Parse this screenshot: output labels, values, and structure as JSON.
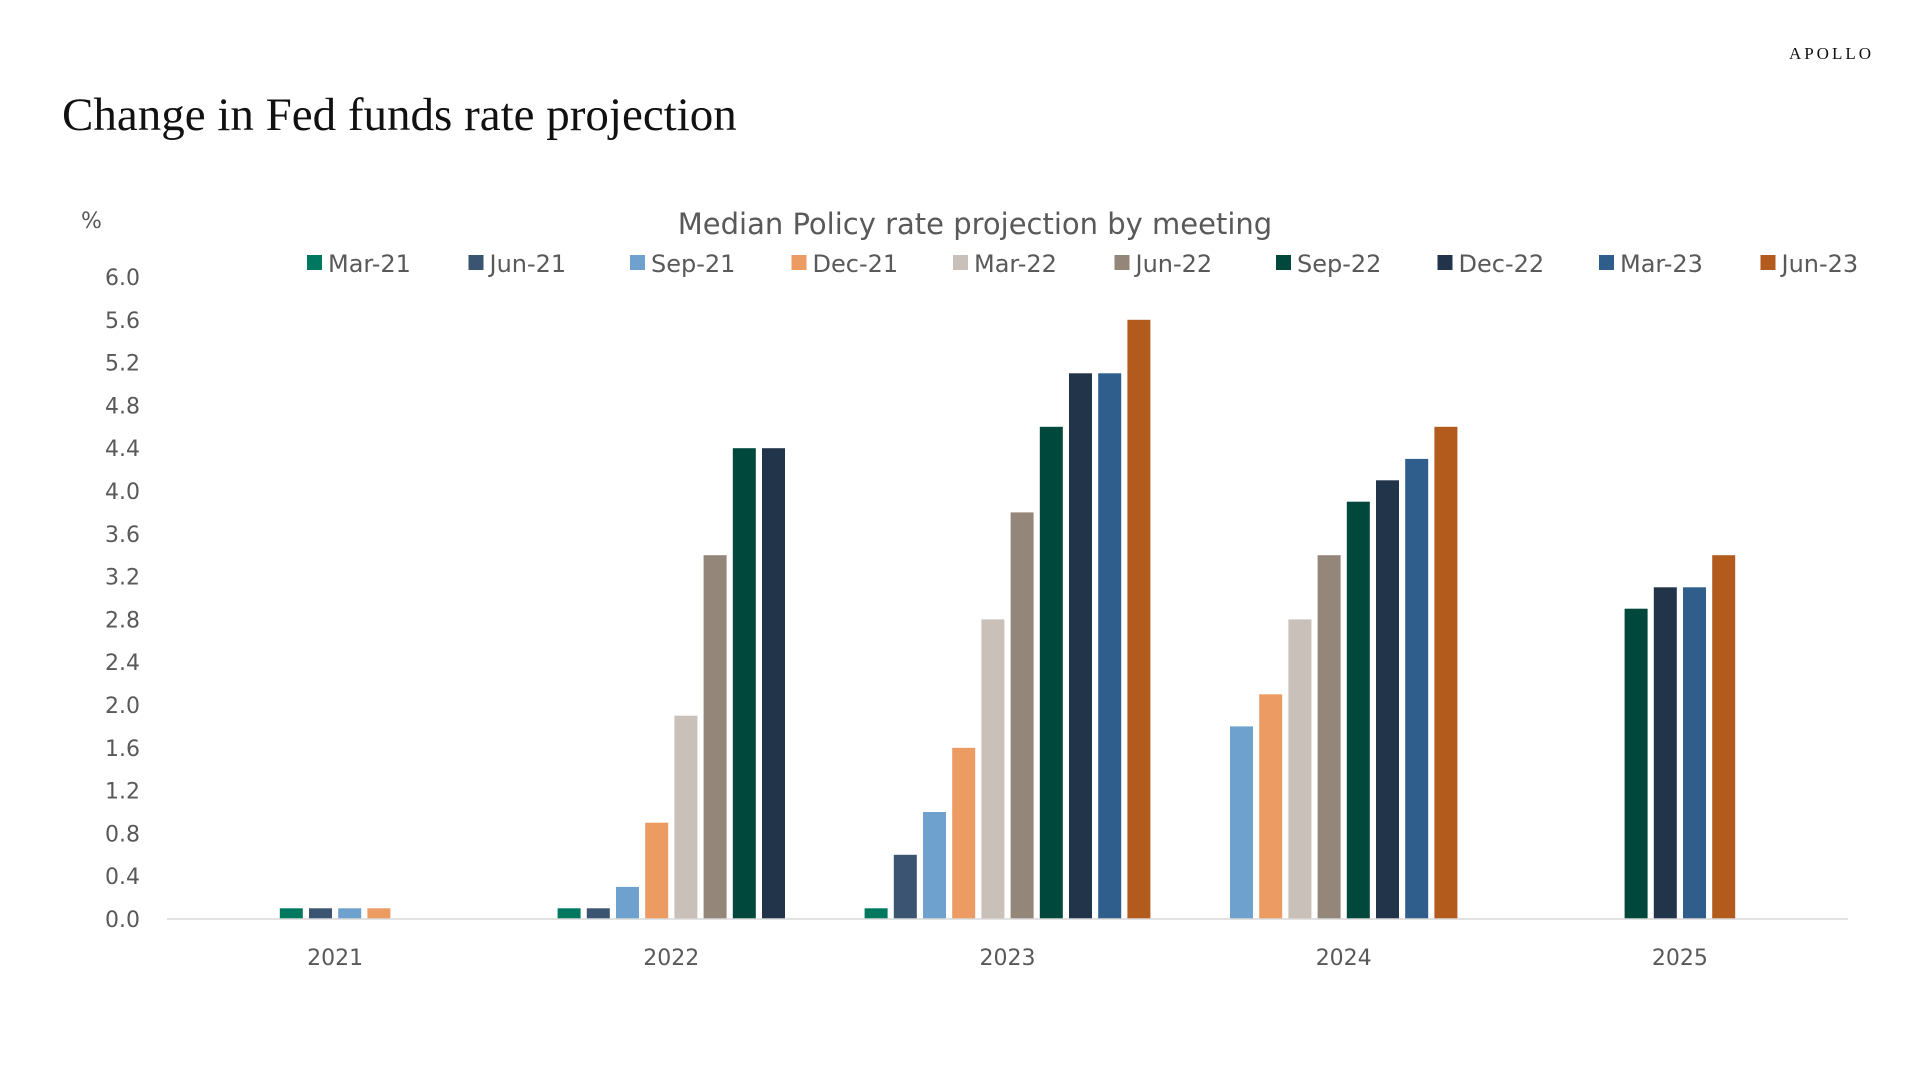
{
  "brand": "APOLLO",
  "page_title": "Change in Fed funds rate projection",
  "chart_data": {
    "type": "bar",
    "title": "Median Policy rate projection by meeting",
    "ylabel": "%",
    "xlabel": "",
    "ylim": [
      0,
      6
    ],
    "yticks": [
      "0.0",
      "0.4",
      "0.8",
      "1.2",
      "1.6",
      "2.0",
      "2.4",
      "2.8",
      "3.2",
      "3.6",
      "4.0",
      "4.4",
      "4.8",
      "5.2",
      "5.6",
      "6.0"
    ],
    "grid": false,
    "legend_position": "top",
    "categories": [
      "2021",
      "2022",
      "2023",
      "2024",
      "2025"
    ],
    "series": [
      {
        "name": "Mar-21",
        "color": "#00775F",
        "values": [
          0.1,
          0.1,
          0.1,
          null,
          null
        ]
      },
      {
        "name": "Jun-21",
        "color": "#3B5472",
        "values": [
          0.1,
          0.1,
          0.6,
          null,
          null
        ]
      },
      {
        "name": "Sep-21",
        "color": "#6FA1CF",
        "values": [
          0.1,
          0.3,
          1.0,
          1.8,
          null
        ]
      },
      {
        "name": "Dec-21",
        "color": "#EC9B63",
        "values": [
          0.1,
          0.9,
          1.6,
          2.1,
          null
        ]
      },
      {
        "name": "Mar-22",
        "color": "#C9C1B9",
        "values": [
          null,
          1.9,
          2.8,
          2.8,
          null
        ]
      },
      {
        "name": "Jun-22",
        "color": "#948679",
        "values": [
          null,
          3.4,
          3.8,
          3.4,
          null
        ]
      },
      {
        "name": "Sep-22",
        "color": "#00483C",
        "values": [
          null,
          4.4,
          4.6,
          3.9,
          2.9
        ]
      },
      {
        "name": "Dec-22",
        "color": "#22344A",
        "values": [
          null,
          4.4,
          5.1,
          4.1,
          3.1
        ]
      },
      {
        "name": "Mar-23",
        "color": "#2F5D8C",
        "values": [
          null,
          null,
          5.1,
          4.3,
          3.1
        ]
      },
      {
        "name": "Jun-23",
        "color": "#B25B1D",
        "values": [
          null,
          null,
          5.6,
          4.6,
          3.4
        ]
      }
    ]
  }
}
